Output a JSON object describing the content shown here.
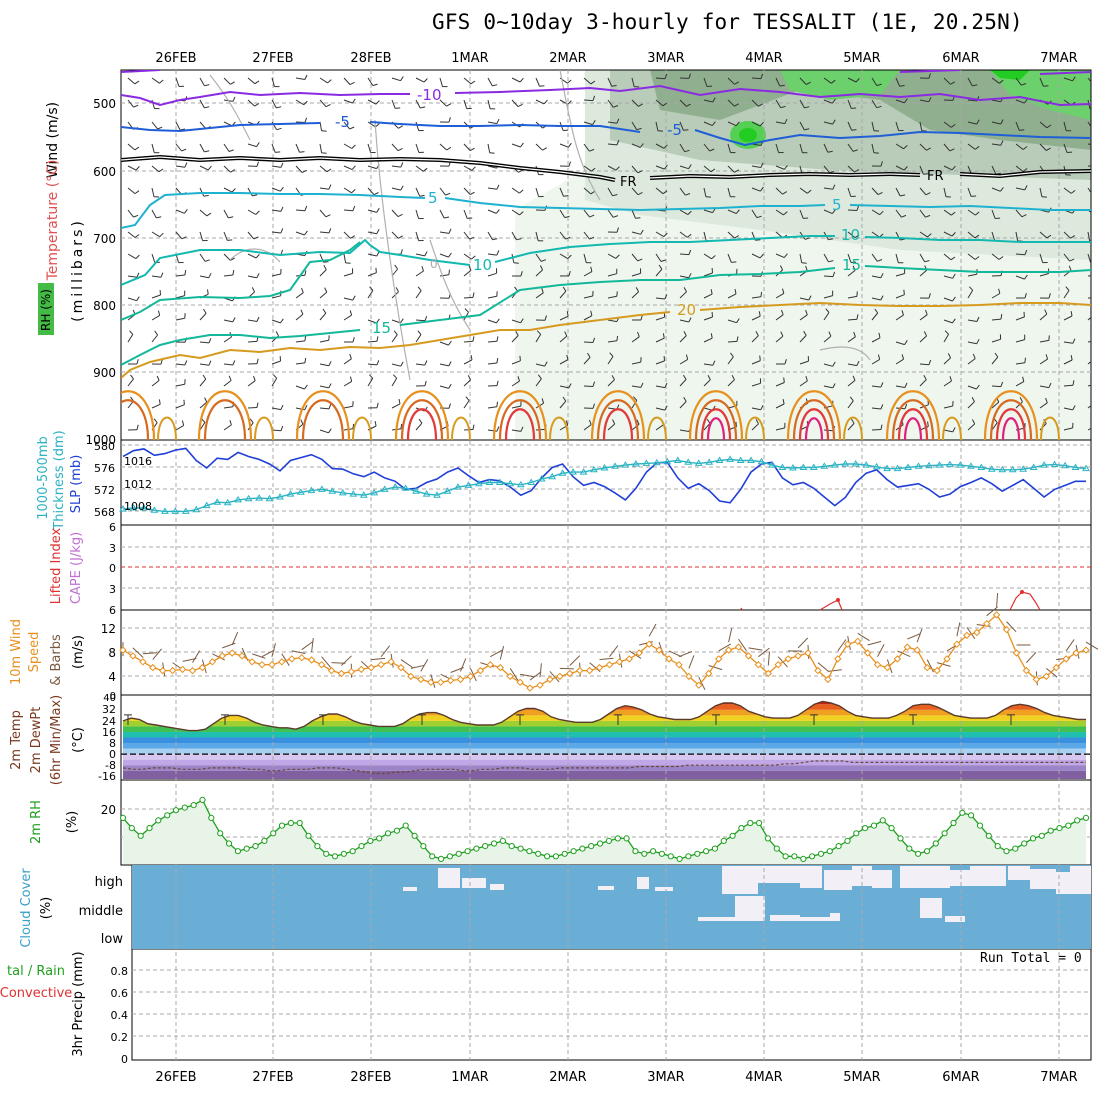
{
  "title": "GFS 0~10day 3-hourly for TESSALIT (1E, 20.25N)",
  "run_total": "Run Total = 0",
  "days": [
    "26FEB",
    "27FEB",
    "28FEB",
    "1MAR",
    "2MAR",
    "3MAR",
    "4MAR",
    "5MAR",
    "6MAR",
    "7MAR"
  ],
  "colors": {
    "grid": "#aaaaaa",
    "rh_green": "#33cc33",
    "rh_light": "#e8f4e8",
    "temp_purple": "#8a2be2",
    "temp_blue": "#1f5fd6",
    "temp_teal": "#1fb2d0",
    "temp_green": "#13b89a",
    "temp_orange": "#d69a1f",
    "slp": "#1f3fd6",
    "thickness": "#2ab3c3",
    "lifted": "#e03030",
    "wind10": "#e8901e",
    "rh2m": "#1f9f1f",
    "cloud": "#6aaed6"
  },
  "panels": {
    "upper": {
      "ylabel_wind": "Wind (m/s)",
      "ylabel_temp": "Temperature (°C)",
      "ylabel_rh": "RH (%)",
      "ylabel_units": "(millibars)",
      "yticks": [
        "500",
        "600",
        "700",
        "800",
        "900",
        "1000"
      ],
      "contour_labels": [
        "-10",
        "-5",
        "-5",
        "FR",
        "FR",
        "5",
        "5",
        "10",
        "10",
        "15",
        "15",
        "20",
        "0"
      ]
    },
    "slp": {
      "ylabel_left": "1000-500mb",
      "ylabel_left2": "Thickness (dm)",
      "ylabel_right": "SLP (mb)",
      "thickness_ticks": [
        "580",
        "576",
        "572",
        "568"
      ],
      "slp_ticks": [
        "1016",
        "1012",
        "1008"
      ]
    },
    "lifted": {
      "ylabel": "Lifted Index",
      "ylabel2": "CAPE (J/kg)",
      "yticks": [
        "6",
        "3",
        "0",
        "3",
        "6"
      ]
    },
    "wind10": {
      "ylabel": "10m Wind",
      "ylabel2": "Speed",
      "ylabel3": "& Barbs",
      "units": "(m/s)",
      "yticks": [
        "12",
        "8",
        "4",
        "0"
      ]
    },
    "temp2m": {
      "ylabel": "2m Temp",
      "ylabel2": "2m DewPt",
      "ylabel3": "(6hr Min/Max)",
      "units": "(°C)",
      "yticks": [
        "40",
        "32",
        "24",
        "16",
        "8",
        "0",
        "-8",
        "-16"
      ]
    },
    "rh2m": {
      "ylabel": "2m RH",
      "units": "(%)",
      "yticks": [
        "20"
      ]
    },
    "cloud": {
      "ylabel": "Cloud Cover",
      "units": "(%)",
      "levels": [
        "high",
        "middle",
        "low"
      ]
    },
    "precip": {
      "ylabel": "3hr Precip (mm)",
      "ylabel_left1": "tal / Rain",
      "ylabel_left2": "Convective",
      "yticks": [
        "0.8",
        "0.6",
        "0.4",
        "0.2",
        "0"
      ]
    }
  },
  "chart_data": [
    {
      "type": "line",
      "panel": "slp",
      "series": [
        {
          "name": "SLP (mb)",
          "values": [
            1016.5,
            1017.5,
            1017.8,
            1016.7,
            1017.0,
            1017.6,
            1017.9,
            1015.8,
            1014.5,
            1016.2,
            1016.0,
            1017.2,
            1016.5,
            1016.0,
            1015.2,
            1014.0,
            1015.8,
            1016.3,
            1016.8,
            1016.0,
            1014.4,
            1014.3,
            1013.5,
            1013.0,
            1013.8,
            1012.8,
            1012.2,
            1010.8,
            1011.0,
            1012.0,
            1012.6,
            1013.8,
            1014.5,
            1013.2,
            1012.0,
            1012.5,
            1012.3,
            1011.2,
            1009.8,
            1010.6,
            1012.8,
            1014.6,
            1015.2,
            1013.0,
            1011.5,
            1012.0,
            1011.3,
            1010.2,
            1009.0,
            1011.0,
            1013.8,
            1015.4,
            1015.5,
            1012.8,
            1011.0,
            1011.8,
            1010.6,
            1008.8,
            1008.5,
            1010.8,
            1013.8,
            1015.2,
            1015.5,
            1012.8,
            1011.6,
            1012.0,
            1011.0,
            1009.5,
            1008.0,
            1009.4,
            1012.0,
            1013.6,
            1014.2,
            1012.5,
            1011.2,
            1011.5,
            1011.8,
            1010.8,
            1009.5,
            1010.0,
            1011.3,
            1012.0,
            1012.8,
            1011.8,
            1010.5,
            1011.5,
            1012.5,
            1011.0,
            1009.5,
            1010.8,
            1011.5,
            1012.2,
            1012.2
          ]
        },
        {
          "name": "1000-500mb Thickness (dm)",
          "values": [
            568.4,
            568.6,
            568.6,
            568.2,
            568.0,
            568.0,
            568.0,
            568.3,
            569.0,
            569.6,
            569.5,
            570.0,
            570.2,
            570.3,
            570.2,
            570.5,
            571.0,
            571.3,
            571.6,
            571.8,
            571.5,
            571.2,
            571.0,
            570.8,
            571.2,
            571.8,
            572.2,
            572.0,
            571.5,
            571.0,
            570.8,
            571.5,
            572.2,
            572.5,
            572.8,
            573.0,
            573.0,
            572.8,
            572.6,
            573.0,
            573.6,
            574.0,
            574.6,
            574.8,
            574.8,
            575.2,
            575.5,
            575.8,
            576.0,
            576.2,
            576.3,
            576.4,
            576.6,
            576.8,
            576.5,
            576.3,
            576.5,
            576.8,
            577.0,
            576.8,
            576.8,
            576.6,
            576.0,
            575.6,
            575.5,
            575.6,
            575.6,
            575.8,
            576.0,
            576.2,
            576.2,
            576.0,
            575.7,
            575.4,
            575.4,
            575.6,
            575.8,
            575.9,
            576.0,
            576.1,
            576.0,
            575.8,
            575.6,
            575.3,
            575.2,
            575.2,
            575.3,
            575.6,
            576.0,
            576.1,
            575.9,
            575.6,
            575.4
          ]
        }
      ],
      "ylim_slp": [
        1005,
        1019
      ],
      "ylim_thickness": [
        566,
        580
      ]
    },
    {
      "type": "line",
      "panel": "wind10",
      "series": [
        {
          "name": "10m Wind Speed",
          "values": [
            7.5,
            6.5,
            5.5,
            4.5,
            4.0,
            4.0,
            4.2,
            4.0,
            4.5,
            5.5,
            6.5,
            7.0,
            6.5,
            5.5,
            5.0,
            5.0,
            5.5,
            6.0,
            6.2,
            5.8,
            5.0,
            4.0,
            3.5,
            3.8,
            4.2,
            4.5,
            5.0,
            5.5,
            4.5,
            3.0,
            2.5,
            2.0,
            2.0,
            2.3,
            2.5,
            3.0,
            4.0,
            5.0,
            4.5,
            3.0,
            2.0,
            1.0,
            1.5,
            2.5,
            3.0,
            3.5,
            4.0,
            4.0,
            4.5,
            5.0,
            5.5,
            6.0,
            7.0,
            8.5,
            7.5,
            6.0,
            5.0,
            3.0,
            1.5,
            3.5,
            6.0,
            7.5,
            8.0,
            6.5,
            5.0,
            3.5,
            5.0,
            6.0,
            6.5,
            7.0,
            4.0,
            2.5,
            6.0,
            8.5,
            9.0,
            7.0,
            5.0,
            4.5,
            6.0,
            8.0,
            7.5,
            4.5,
            4.0,
            6.0,
            8.5,
            10.0,
            10.5,
            12.0,
            13.5,
            11.0,
            7.0,
            4.0,
            2.5,
            3.0,
            4.5,
            6.0,
            7.0,
            7.5
          ]
        }
      ],
      "ylim": [
        0,
        14
      ]
    },
    {
      "type": "area",
      "panel": "temp2m",
      "series": [
        {
          "name": "2m Temp",
          "values": [
            24,
            26,
            25,
            22,
            21,
            20,
            19,
            18,
            17,
            17,
            18,
            22,
            26,
            28,
            28,
            26,
            23,
            21,
            20,
            19,
            19,
            18,
            20,
            24,
            27,
            29,
            29,
            27,
            24,
            22,
            21,
            20,
            20,
            20,
            22,
            26,
            29,
            30,
            30,
            28,
            25,
            23,
            22,
            21,
            21,
            21,
            23,
            27,
            31,
            33,
            33,
            31,
            27,
            25,
            24,
            23,
            23,
            23,
            25,
            29,
            33,
            35,
            34,
            32,
            29,
            27,
            26,
            25,
            25,
            25,
            27,
            31,
            35,
            37,
            37,
            35,
            31,
            29,
            27,
            26,
            26,
            26,
            28,
            32,
            36,
            38,
            37,
            35,
            31,
            28,
            27,
            26,
            26,
            26,
            28,
            31,
            35,
            36,
            36,
            34,
            31,
            28,
            27,
            26,
            26,
            26,
            28,
            32,
            35,
            36,
            35,
            33,
            30,
            28,
            27,
            26,
            25,
            25
          ]
        },
        {
          "name": "2m DewPt",
          "values": [
            -10,
            -11,
            -11,
            -10,
            -10,
            -10,
            -11,
            -11,
            -11,
            -10,
            -10,
            -10,
            -10,
            -11,
            -11,
            -12,
            -12,
            -11,
            -11,
            -11,
            -10,
            -10,
            -10,
            -11,
            -12,
            -13,
            -14,
            -14,
            -13,
            -13,
            -12,
            -11,
            -11,
            -11,
            -11,
            -12,
            -12,
            -11,
            -11,
            -10,
            -10,
            -10,
            -11,
            -11,
            -11,
            -10,
            -10,
            -10,
            -10,
            -10,
            -10,
            -10,
            -10,
            -9,
            -9,
            -9,
            -9,
            -9,
            -8,
            -8,
            -8,
            -8,
            -8,
            -8,
            -8,
            -8,
            -8,
            -8,
            -7,
            -7,
            -6,
            -5,
            -5,
            -5,
            -5,
            -6,
            -6,
            -6,
            -6,
            -6,
            -6,
            -6,
            -6,
            -6,
            -6,
            -6,
            -6,
            -6,
            -6,
            -6,
            -6,
            -6,
            -6,
            -6,
            -6,
            -6,
            -6,
            -6,
            -6,
            -6
          ]
        }
      ],
      "ylim": [
        -18,
        42
      ]
    },
    {
      "type": "line",
      "panel": "rh2m",
      "series": [
        {
          "name": "2m RH",
          "values": [
            18,
            14,
            11,
            14,
            17,
            19,
            21,
            22,
            23,
            25,
            18,
            12,
            8,
            5,
            6,
            7,
            9,
            12,
            15,
            16,
            16,
            11,
            7,
            4,
            3,
            4,
            5,
            7,
            9,
            10,
            12,
            13,
            15,
            11,
            7,
            3,
            2,
            3,
            4,
            5,
            6,
            7,
            8,
            9,
            7,
            6,
            5,
            4,
            3,
            3,
            4,
            5,
            6,
            7,
            8,
            9,
            10,
            10,
            5,
            4,
            5,
            4,
            3,
            2,
            3,
            4,
            5,
            6,
            9,
            11,
            14,
            16,
            16,
            10,
            6,
            3,
            3,
            2,
            3,
            4,
            5,
            7,
            9,
            12,
            14,
            15,
            17,
            14,
            10,
            6,
            4,
            5,
            8,
            12,
            16,
            20,
            19,
            15,
            11,
            7,
            5,
            6,
            8,
            10,
            11,
            13,
            14,
            15,
            17,
            18
          ]
        }
      ],
      "ylim": [
        0,
        32
      ]
    }
  ]
}
